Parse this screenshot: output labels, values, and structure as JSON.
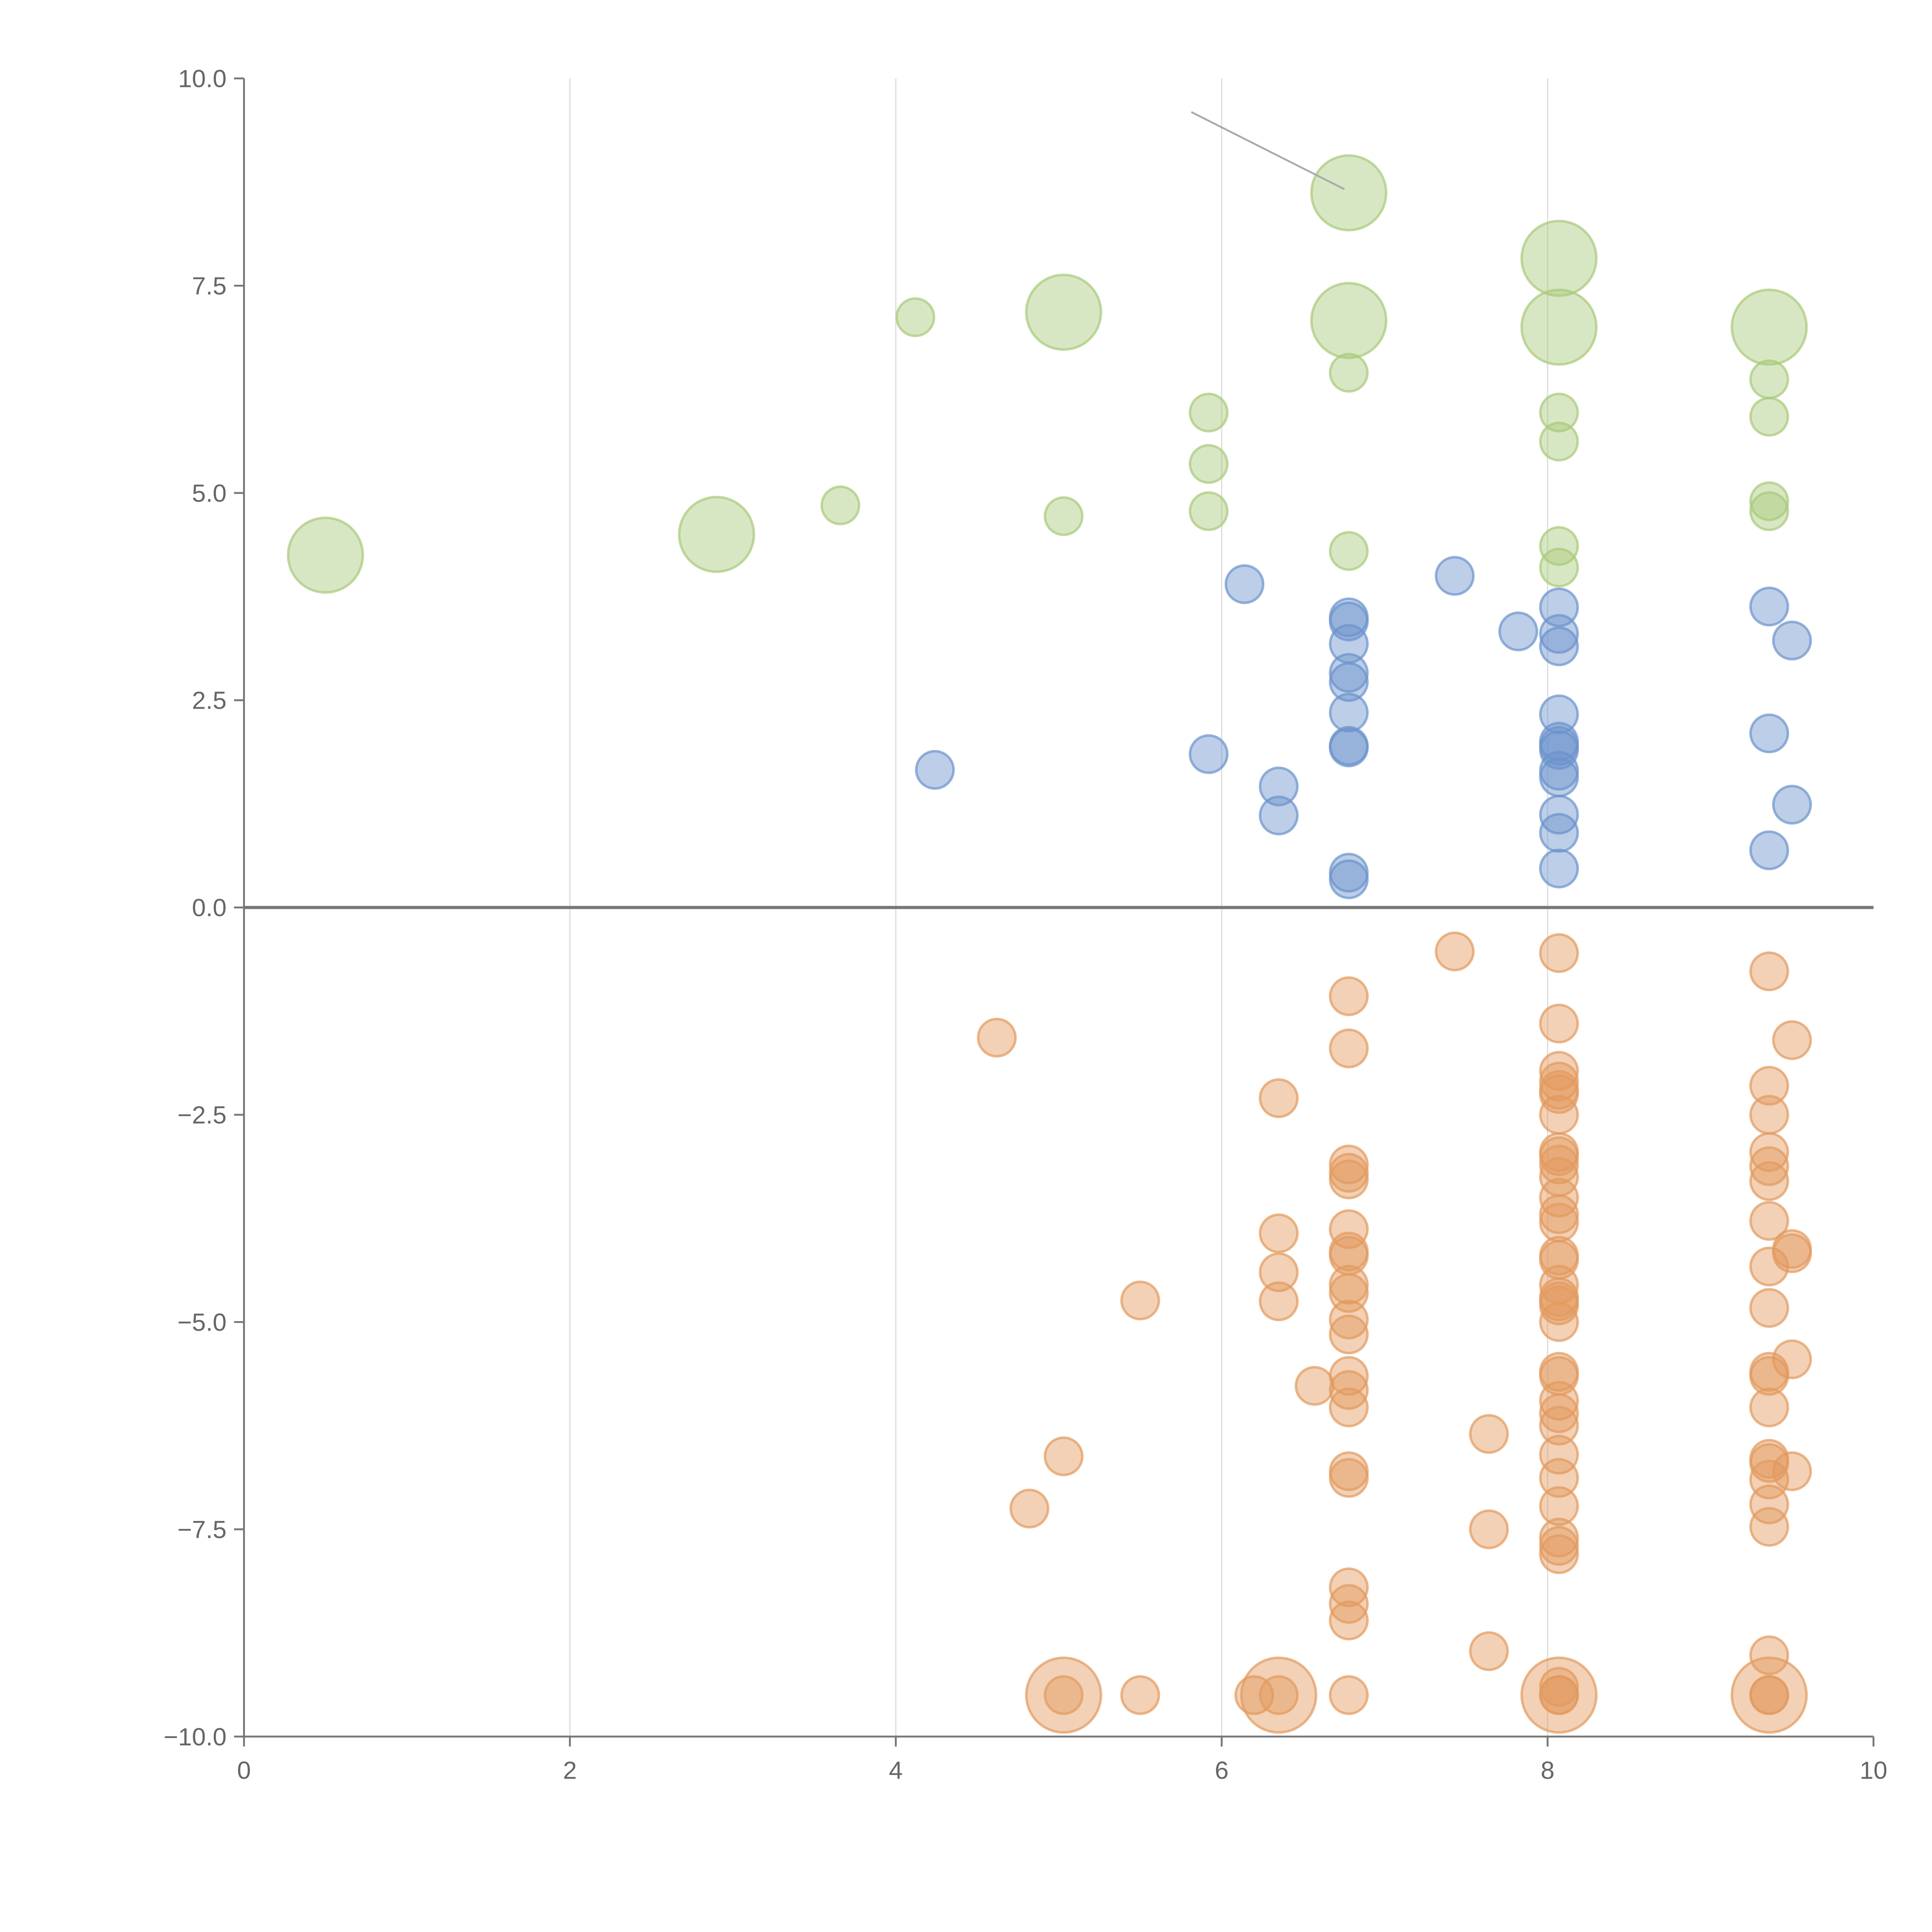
{
  "chart_data": {
    "type": "scatter",
    "title": "",
    "xlabel": "",
    "ylabel": "",
    "xlim": [
      0,
      10
    ],
    "ylim": [
      -10,
      10
    ],
    "grid": "vertical",
    "xticks": [
      "0",
      "2",
      "4",
      "6",
      "8",
      "10"
    ],
    "yticks": [
      "10.0",
      "7.5",
      "5.0",
      "2.5",
      "0.0",
      "−2.5",
      "−5.0",
      "−7.5",
      "−10.0"
    ],
    "reference_line_y": 0,
    "point_format": "[x, y, size]",
    "series": [
      {
        "name": "green",
        "color": "#a9c97a",
        "points": [
          [
            0.5,
            4.25,
            2
          ],
          [
            2.9,
            4.5,
            2
          ],
          [
            3.66,
            4.85,
            1
          ],
          [
            4.12,
            7.12,
            1
          ],
          [
            5.03,
            7.18,
            2
          ],
          [
            5.03,
            4.72,
            1
          ],
          [
            5.92,
            5.97,
            1
          ],
          [
            5.92,
            5.35,
            1
          ],
          [
            5.92,
            4.78,
            1
          ],
          [
            6.78,
            8.62,
            2
          ],
          [
            6.78,
            7.08,
            2
          ],
          [
            6.78,
            6.45,
            1
          ],
          [
            6.78,
            4.3,
            1
          ],
          [
            8.07,
            7.83,
            2
          ],
          [
            8.07,
            7.0,
            2
          ],
          [
            8.07,
            5.97,
            1
          ],
          [
            8.07,
            5.62,
            1
          ],
          [
            8.07,
            4.36,
            1
          ],
          [
            8.07,
            4.1,
            1
          ],
          [
            9.36,
            7.0,
            2
          ],
          [
            9.36,
            6.37,
            1
          ],
          [
            9.36,
            5.92,
            1
          ],
          [
            9.36,
            4.9,
            1
          ],
          [
            9.36,
            4.78,
            1
          ]
        ]
      },
      {
        "name": "blue",
        "color": "#6b93cc",
        "points": [
          [
            4.24,
            1.66,
            1
          ],
          [
            5.92,
            1.85,
            1
          ],
          [
            6.14,
            3.9,
            1
          ],
          [
            6.35,
            1.46,
            1
          ],
          [
            6.35,
            1.11,
            1
          ],
          [
            6.78,
            3.5,
            1
          ],
          [
            6.78,
            3.45,
            1
          ],
          [
            6.78,
            3.18,
            1
          ],
          [
            6.78,
            2.83,
            1
          ],
          [
            6.78,
            2.72,
            1
          ],
          [
            6.78,
            2.35,
            1
          ],
          [
            6.78,
            1.95,
            1
          ],
          [
            6.78,
            1.93,
            1
          ],
          [
            6.78,
            0.42,
            1
          ],
          [
            6.78,
            0.34,
            1
          ],
          [
            7.43,
            4.0,
            1
          ],
          [
            7.82,
            3.33,
            1
          ],
          [
            8.07,
            3.62,
            1
          ],
          [
            8.07,
            3.3,
            1
          ],
          [
            8.07,
            3.15,
            1
          ],
          [
            8.07,
            2.33,
            1
          ],
          [
            8.07,
            2.0,
            1
          ],
          [
            8.07,
            1.95,
            1
          ],
          [
            8.07,
            1.9,
            1
          ],
          [
            8.07,
            1.65,
            1
          ],
          [
            8.07,
            1.57,
            1
          ],
          [
            8.07,
            1.12,
            1
          ],
          [
            8.07,
            0.9,
            1
          ],
          [
            8.07,
            0.47,
            1
          ],
          [
            9.36,
            3.63,
            1
          ],
          [
            9.5,
            3.22,
            1
          ],
          [
            9.36,
            2.1,
            1
          ],
          [
            9.5,
            1.24,
            1
          ],
          [
            9.36,
            0.69,
            1
          ]
        ]
      },
      {
        "name": "orange",
        "color": "#e39a5e",
        "points": [
          [
            4.62,
            -1.57,
            1
          ],
          [
            4.82,
            -7.25,
            1
          ],
          [
            5.03,
            -6.62,
            1
          ],
          [
            5.03,
            -9.5,
            2
          ],
          [
            5.03,
            -9.5,
            1
          ],
          [
            5.5,
            -4.74,
            1
          ],
          [
            5.5,
            -9.5,
            1
          ],
          [
            6.2,
            -9.5,
            1
          ],
          [
            6.35,
            -2.3,
            1
          ],
          [
            6.35,
            -3.93,
            1
          ],
          [
            6.35,
            -4.4,
            1
          ],
          [
            6.35,
            -4.75,
            1
          ],
          [
            6.35,
            -9.5,
            2
          ],
          [
            6.35,
            -9.5,
            1
          ],
          [
            6.57,
            -5.77,
            1
          ],
          [
            6.78,
            -1.07,
            1
          ],
          [
            6.78,
            -1.7,
            1
          ],
          [
            6.78,
            -3.1,
            1
          ],
          [
            6.78,
            -3.2,
            1
          ],
          [
            6.78,
            -3.28,
            1
          ],
          [
            6.78,
            -3.88,
            1
          ],
          [
            6.78,
            -4.15,
            1
          ],
          [
            6.78,
            -4.2,
            1
          ],
          [
            6.78,
            -4.55,
            1
          ],
          [
            6.78,
            -4.65,
            1
          ],
          [
            6.78,
            -4.97,
            1
          ],
          [
            6.78,
            -5.15,
            1
          ],
          [
            6.78,
            -5.65,
            1
          ],
          [
            6.78,
            -5.82,
            1
          ],
          [
            6.78,
            -6.03,
            1
          ],
          [
            6.78,
            -6.8,
            1
          ],
          [
            6.78,
            -6.88,
            1
          ],
          [
            6.78,
            -8.2,
            1
          ],
          [
            6.78,
            -8.4,
            1
          ],
          [
            6.78,
            -8.6,
            1
          ],
          [
            6.78,
            -9.5,
            1
          ],
          [
            7.43,
            -0.53,
            1
          ],
          [
            7.64,
            -6.35,
            1
          ],
          [
            7.64,
            -7.5,
            1
          ],
          [
            7.64,
            -8.97,
            1
          ],
          [
            8.07,
            -0.55,
            1
          ],
          [
            8.07,
            -1.4,
            1
          ],
          [
            8.07,
            -1.97,
            1
          ],
          [
            8.07,
            -2.1,
            1
          ],
          [
            8.07,
            -2.2,
            1
          ],
          [
            8.07,
            -2.25,
            1
          ],
          [
            8.07,
            -2.5,
            1
          ],
          [
            8.07,
            -2.95,
            1
          ],
          [
            8.07,
            -3.0,
            1
          ],
          [
            8.07,
            -3.1,
            1
          ],
          [
            8.07,
            -3.25,
            1
          ],
          [
            8.07,
            -3.5,
            1
          ],
          [
            8.07,
            -3.7,
            1
          ],
          [
            8.07,
            -3.8,
            1
          ],
          [
            8.07,
            -4.2,
            1
          ],
          [
            8.07,
            -4.25,
            1
          ],
          [
            8.07,
            -4.55,
            1
          ],
          [
            8.07,
            -4.7,
            1
          ],
          [
            8.07,
            -4.75,
            1
          ],
          [
            8.07,
            -4.8,
            1
          ],
          [
            8.07,
            -5.0,
            1
          ],
          [
            8.07,
            -5.6,
            1
          ],
          [
            8.07,
            -5.65,
            1
          ],
          [
            8.07,
            -5.95,
            1
          ],
          [
            8.07,
            -6.1,
            1
          ],
          [
            8.07,
            -6.25,
            1
          ],
          [
            8.07,
            -6.6,
            1
          ],
          [
            8.07,
            -6.88,
            1
          ],
          [
            8.07,
            -7.22,
            1
          ],
          [
            8.07,
            -7.6,
            1
          ],
          [
            8.07,
            -7.7,
            1
          ],
          [
            8.07,
            -7.8,
            1
          ],
          [
            8.07,
            -9.5,
            2
          ],
          [
            8.07,
            -9.5,
            1
          ],
          [
            8.07,
            -9.5,
            1
          ],
          [
            8.07,
            -9.4,
            1
          ],
          [
            9.36,
            -0.77,
            1
          ],
          [
            9.36,
            -2.15,
            1
          ],
          [
            9.36,
            -2.5,
            1
          ],
          [
            9.36,
            -2.95,
            1
          ],
          [
            9.36,
            -3.12,
            1
          ],
          [
            9.36,
            -3.3,
            1
          ],
          [
            9.36,
            -3.78,
            1
          ],
          [
            9.36,
            -4.33,
            1
          ],
          [
            9.36,
            -4.83,
            1
          ],
          [
            9.36,
            -5.6,
            1
          ],
          [
            9.36,
            -5.65,
            1
          ],
          [
            9.36,
            -6.03,
            1
          ],
          [
            9.36,
            -6.65,
            1
          ],
          [
            9.36,
            -6.7,
            1
          ],
          [
            9.36,
            -6.9,
            1
          ],
          [
            9.36,
            -7.2,
            1
          ],
          [
            9.36,
            -7.47,
            1
          ],
          [
            9.36,
            -9.02,
            1
          ],
          [
            9.36,
            -9.5,
            2
          ],
          [
            9.36,
            -9.5,
            1
          ],
          [
            9.36,
            -9.5,
            1
          ],
          [
            9.5,
            -1.6,
            1
          ],
          [
            9.5,
            -4.12,
            1
          ],
          [
            9.5,
            -4.17,
            1
          ],
          [
            9.5,
            -5.45,
            1
          ],
          [
            9.5,
            -6.8,
            1
          ]
        ]
      }
    ]
  }
}
